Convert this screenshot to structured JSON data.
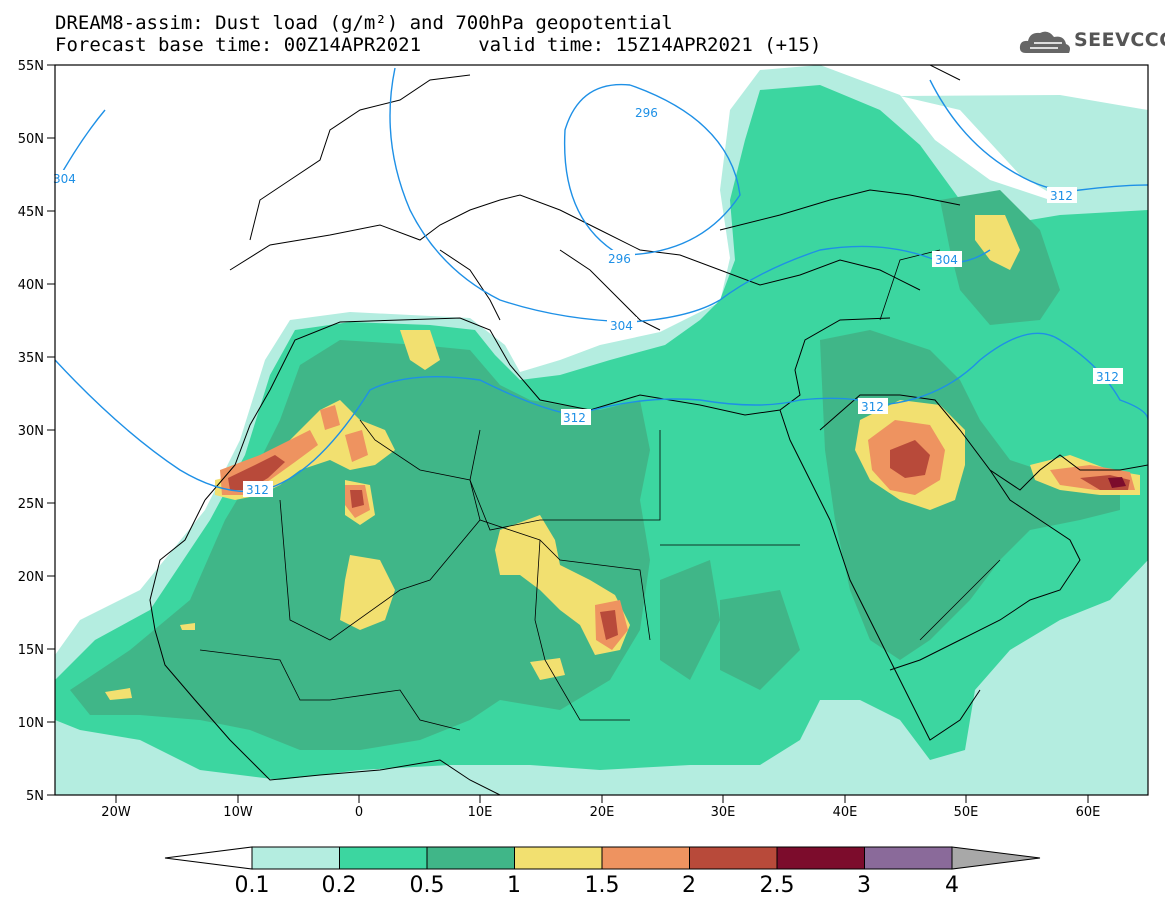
{
  "header": {
    "title_line1": "DREAM8-assim: Dust load (g/m²) and 700hPa geopotential",
    "title_line2": "Forecast base time: 00Z14APR2021     valid time: 15Z14APR2021 (+15)"
  },
  "logo": {
    "text": "SEEVCCC",
    "icon": "cloud-icon"
  },
  "axes": {
    "lat_labels": [
      "55N",
      "50N",
      "45N",
      "40N",
      "35N",
      "30N",
      "25N",
      "20N",
      "15N",
      "10N",
      "5N"
    ],
    "lon_labels": [
      "20W",
      "10W",
      "0",
      "10E",
      "20E",
      "30E",
      "40E",
      "50E",
      "60E"
    ]
  },
  "contours": {
    "labels": [
      "296",
      "304",
      "296",
      "304",
      "312",
      "312",
      "312",
      "304",
      "312",
      "312"
    ]
  },
  "colorbar": {
    "labels": [
      "0.1",
      "0.2",
      "0.5",
      "1",
      "1.5",
      "2",
      "2.5",
      "3",
      "4"
    ],
    "colors": [
      "#b4ede0",
      "#3cd6a0",
      "#40b688",
      "#f2e070",
      "#ee9360",
      "#b84a3a",
      "#7c0c2c",
      "#8a6a9a"
    ],
    "under_color": "#ffffff",
    "over_color": "#a8a8a8"
  },
  "colors": {
    "coast": "#000000",
    "geopotential": "#1e90e6",
    "ocean": "#ffffff"
  }
}
